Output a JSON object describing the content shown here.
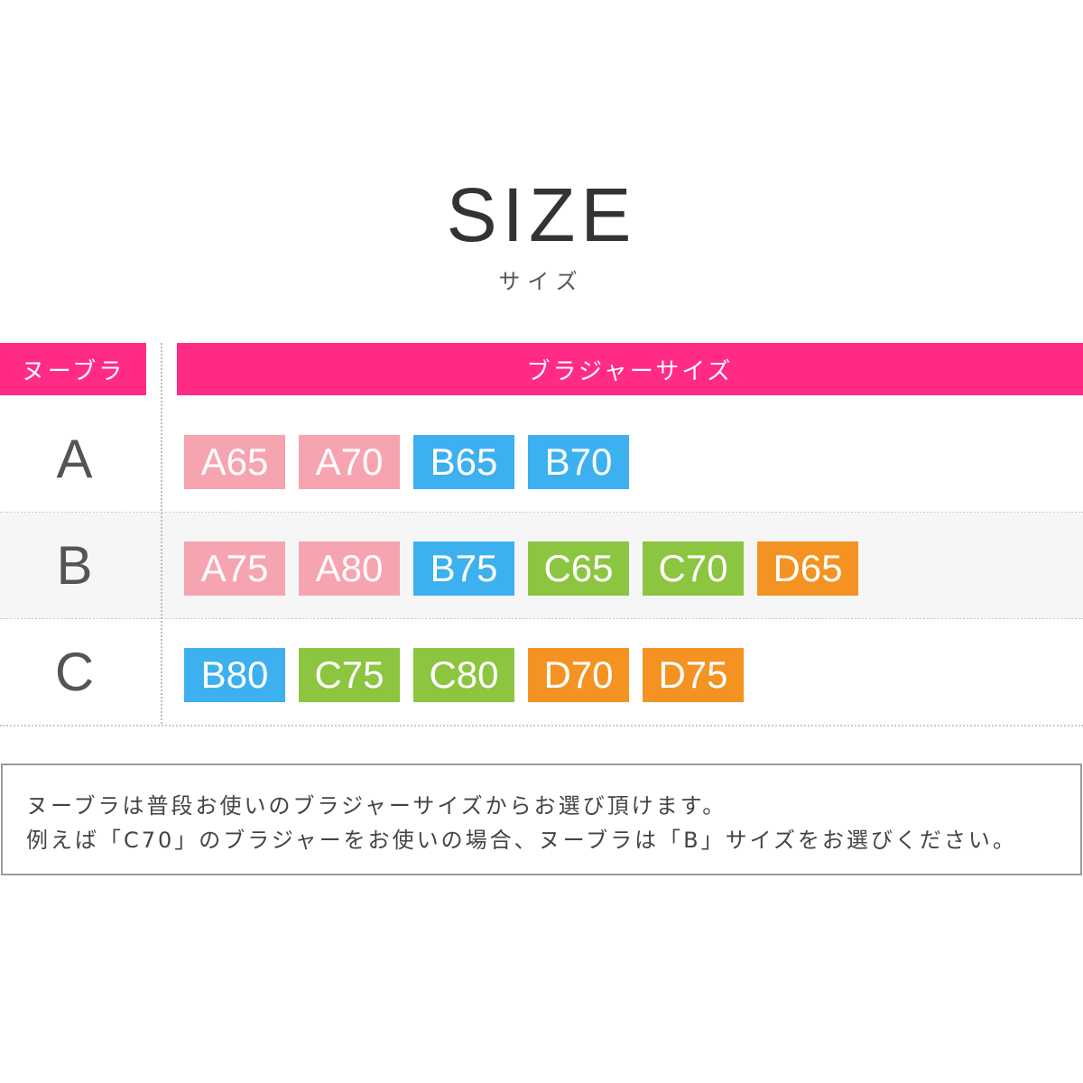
{
  "title": "SIZE",
  "subtitle": "サイズ",
  "table": {
    "headers": [
      "ヌーブラ",
      "ブラジャーサイズ"
    ],
    "rows": [
      {
        "label": "A",
        "sizes": [
          {
            "text": "A65",
            "color": "#f7a4b1"
          },
          {
            "text": "A70",
            "color": "#f7a4b1"
          },
          {
            "text": "B65",
            "color": "#3db0ef"
          },
          {
            "text": "B70",
            "color": "#3db0ef"
          }
        ]
      },
      {
        "label": "B",
        "sizes": [
          {
            "text": "A75",
            "color": "#f7a4b1"
          },
          {
            "text": "A80",
            "color": "#f7a4b1"
          },
          {
            "text": "B75",
            "color": "#3db0ef"
          },
          {
            "text": "C65",
            "color": "#8cc53f"
          },
          {
            "text": "C70",
            "color": "#8cc53f"
          },
          {
            "text": "D65",
            "color": "#f49322"
          }
        ]
      },
      {
        "label": "C",
        "sizes": [
          {
            "text": "B80",
            "color": "#3db0ef"
          },
          {
            "text": "C75",
            "color": "#8cc53f"
          },
          {
            "text": "C80",
            "color": "#8cc53f"
          },
          {
            "text": "D70",
            "color": "#f49322"
          },
          {
            "text": "D75",
            "color": "#f49322"
          }
        ]
      }
    ]
  },
  "note": [
    "ヌーブラは普段お使いのブラジャーサイズからお選び頂けます。",
    "例えば「C70」のブラジャーをお使いの場合、ヌーブラは「B」サイズをお選びください。"
  ]
}
